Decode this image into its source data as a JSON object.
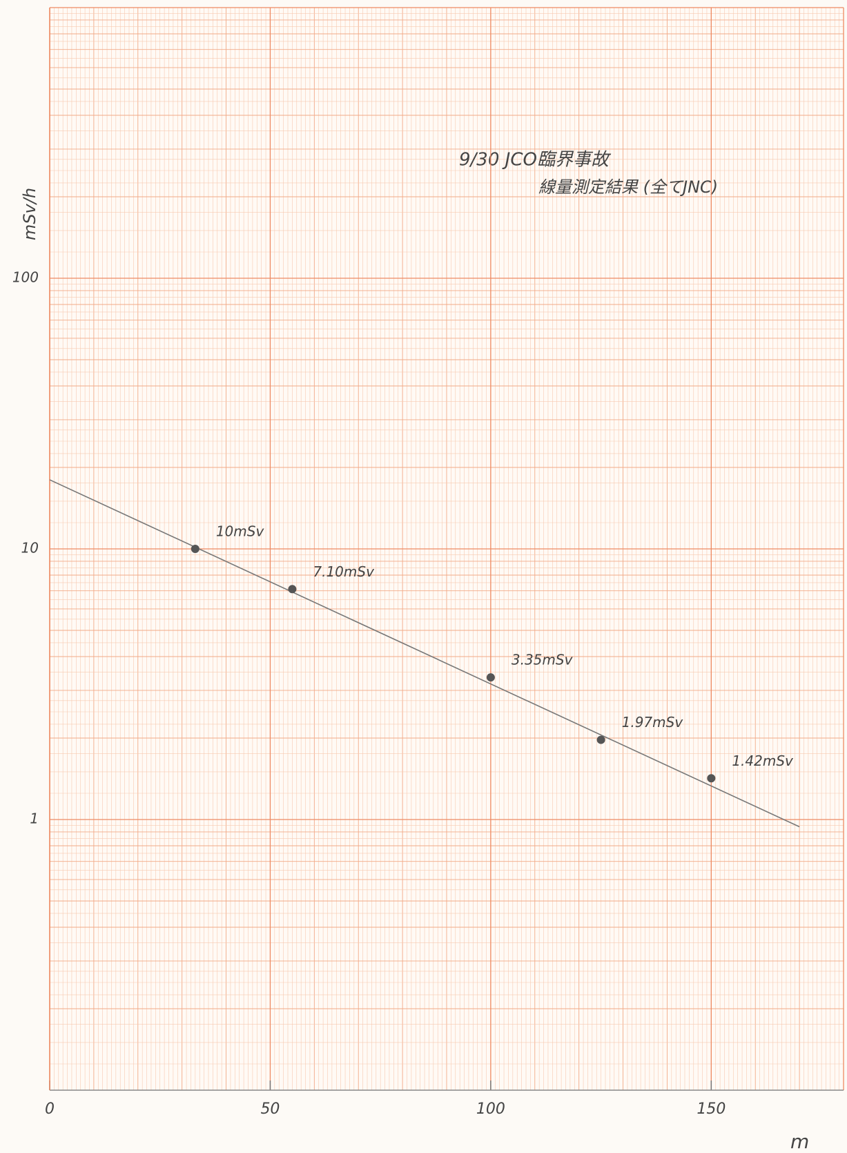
{
  "chart_data": {
    "type": "scatter",
    "title": "9/30 JCO臨界事故",
    "subtitle": "線量測定結果 (全てJNC)",
    "x_label": "m",
    "y_label": "mSv/h",
    "log_y": true,
    "grid": true,
    "xlim": [
      0,
      180
    ],
    "xticks": [
      0,
      50,
      100,
      150
    ],
    "ylim": [
      0.1,
      1000
    ],
    "yticks": [
      1,
      10,
      100
    ],
    "series": [
      {
        "color": "#555555",
        "x": [
          33,
          55,
          100,
          125,
          150
        ],
        "values": [
          10,
          7.1,
          3.35,
          1.97,
          1.42
        ],
        "value_labels": [
          "10mSv",
          "7.10mSv",
          "3.35mSv",
          "1.97mSv",
          "1.42mSv"
        ]
      }
    ],
    "trend": {
      "color": "#777777",
      "x": [
        0,
        170
      ],
      "values": [
        18,
        0.94
      ]
    }
  }
}
